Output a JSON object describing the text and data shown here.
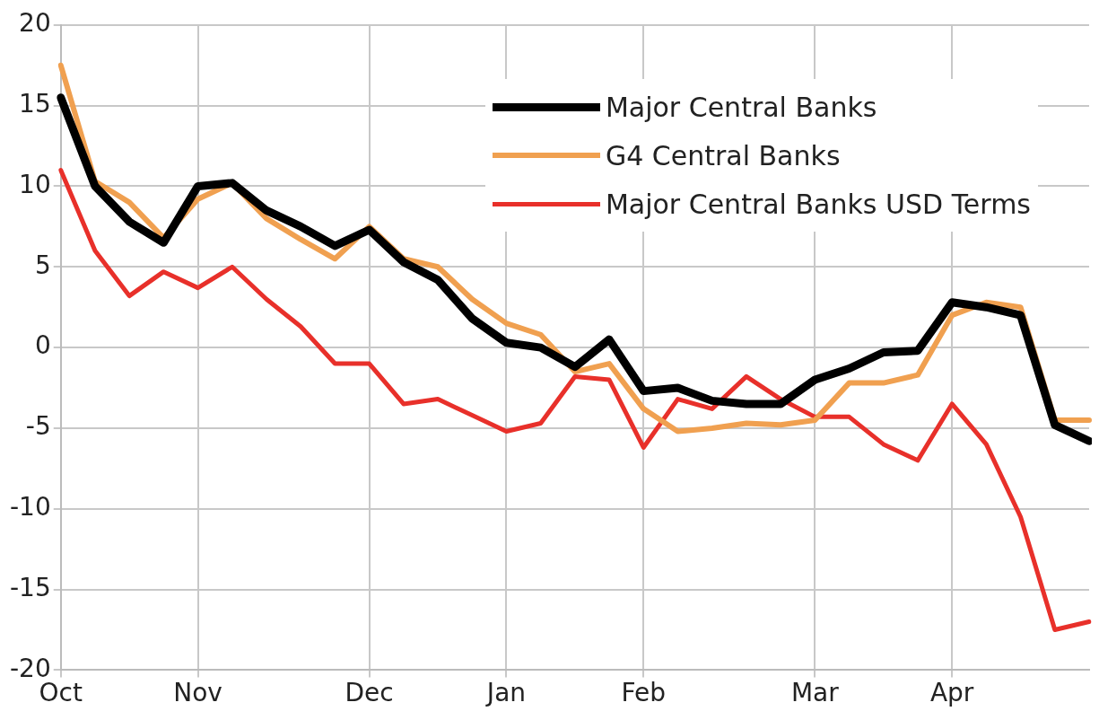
{
  "chart_data": {
    "type": "line",
    "categories": [
      "Oct",
      null,
      null,
      null,
      "Nov",
      null,
      null,
      null,
      null,
      "Dec",
      null,
      null,
      null,
      "Jan",
      null,
      null,
      null,
      "Feb",
      null,
      null,
      null,
      null,
      "Mar",
      null,
      null,
      null,
      "Apr",
      null,
      null,
      null,
      null
    ],
    "series": [
      {
        "name": "Major Central Banks",
        "color": "#000000",
        "values": [
          15.5,
          10,
          7.8,
          6.5,
          10,
          10.2,
          8.5,
          7.5,
          6.3,
          7.3,
          5.3,
          4.2,
          1.8,
          0.3,
          0,
          -1.2,
          0.5,
          -2.7,
          -2.5,
          -3.3,
          -3.5,
          -3.5,
          -2,
          -1.3,
          -0.3,
          -0.2,
          2.8,
          2.5,
          2,
          -4.8,
          -5.8
        ]
      },
      {
        "name": "G4 Central Banks",
        "color": "#f0a050",
        "values": [
          17.5,
          10.3,
          9,
          6.8,
          9.2,
          10.2,
          8,
          6.7,
          5.5,
          7.5,
          5.5,
          5,
          3,
          1.5,
          0.8,
          -1.5,
          -1,
          -3.8,
          -5.2,
          -5,
          -4.7,
          -4.8,
          -4.5,
          -2.2,
          -2.2,
          -1.7,
          2,
          2.8,
          2.5,
          -4.5,
          -4.5
        ]
      },
      {
        "name": "Major Central Banks USD Terms",
        "color": "#e8302a",
        "values": [
          11,
          6,
          3.2,
          4.7,
          3.7,
          5,
          3,
          1.3,
          -1,
          -1,
          -3.5,
          -3.2,
          -4.2,
          -5.2,
          -4.7,
          -1.8,
          -2,
          -6.2,
          -3.2,
          -3.8,
          -1.8,
          -3.2,
          -4.3,
          -4.3,
          -6,
          -7,
          -3.5,
          -6,
          -10.5,
          -17.5,
          -17
        ]
      }
    ],
    "ylim": [
      -20,
      20
    ],
    "yticks": [
      -20,
      -15,
      -10,
      -5,
      0,
      5,
      10,
      15,
      20
    ],
    "grid": true,
    "legend": "top right",
    "marker": "none",
    "line_style": "solid"
  }
}
